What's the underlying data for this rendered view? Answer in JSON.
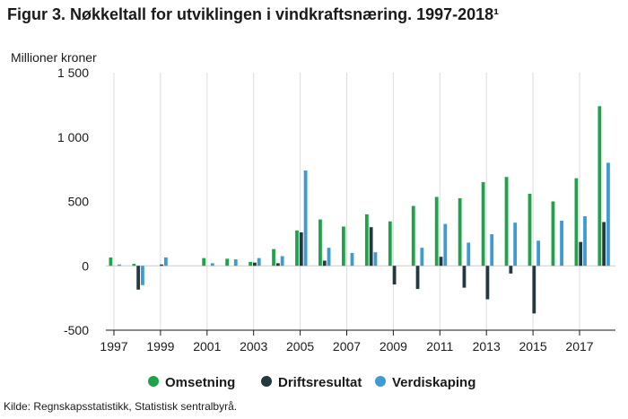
{
  "title": "Figur 3. Nøkkeltall for utviklingen i vindkraftsnæring. 1997-2018¹",
  "unit_label": "Millioner kroner",
  "source": "Kilde: Regnskapsstatistikk, Statistisk sentralbyrå.",
  "chart_data": {
    "type": "bar",
    "title": "Figur 3. Nøkkeltall for utviklingen i vindkraftsnæring. 1997-2018¹",
    "ylabel": "Millioner kroner",
    "xlabel": "",
    "ylim": [
      -500,
      1500
    ],
    "yticks": [
      -500,
      0,
      500,
      1000,
      1500
    ],
    "ytick_labels": [
      "-500",
      "0",
      "500",
      "1 000",
      "1 500"
    ],
    "grid": "vertical",
    "legend": "bottom",
    "categories": [
      "1997",
      "1998",
      "1999",
      "2000",
      "2001",
      "2002",
      "2003",
      "2004",
      "2005",
      "2006",
      "2007",
      "2008",
      "2009",
      "2010",
      "2011",
      "2012",
      "2013",
      "2014",
      "2015",
      "2016",
      "2017",
      "2018"
    ],
    "xtick_labels": [
      "1997",
      "1999",
      "2001",
      "2003",
      "2005",
      "2007",
      "2009",
      "2011",
      "2013",
      "2015",
      "2017"
    ],
    "series": [
      {
        "name": "Omsetning",
        "color": "#1fa34a",
        "values": [
          65,
          15,
          0,
          0,
          60,
          55,
          30,
          130,
          275,
          360,
          305,
          400,
          345,
          465,
          535,
          525,
          650,
          690,
          560,
          500,
          680,
          1240
        ]
      },
      {
        "name": "Driftsresultat",
        "color": "#23383f",
        "values": [
          0,
          -185,
          10,
          0,
          0,
          0,
          25,
          20,
          260,
          40,
          0,
          300,
          -145,
          -180,
          70,
          -170,
          -260,
          -60,
          -370,
          0,
          185,
          340
        ]
      },
      {
        "name": "Verdiskaping",
        "color": "#3d9ad5",
        "values": [
          10,
          -150,
          65,
          0,
          20,
          50,
          60,
          75,
          740,
          140,
          100,
          105,
          0,
          140,
          325,
          180,
          245,
          335,
          195,
          350,
          385,
          800
        ]
      }
    ]
  }
}
